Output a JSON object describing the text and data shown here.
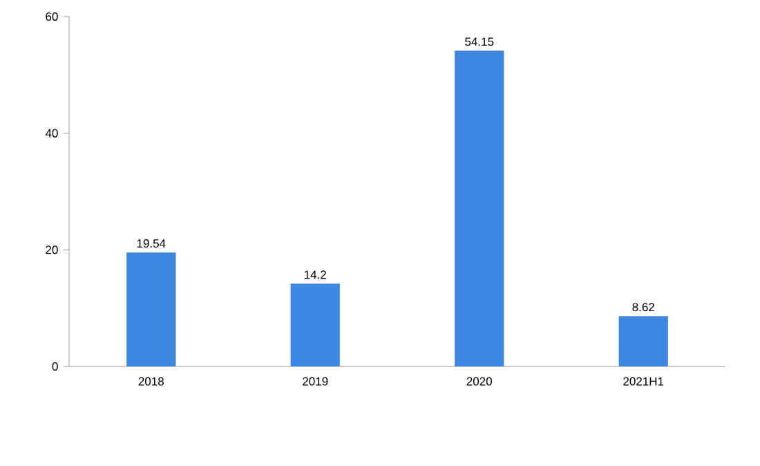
{
  "chart_data": {
    "type": "bar",
    "categories": [
      "2018",
      "2019",
      "2020",
      "2021H1"
    ],
    "values": [
      19.54,
      14.2,
      54.15,
      8.62
    ],
    "color": "#3d87e0",
    "ylim": [
      0,
      60
    ],
    "yticks": [
      0,
      20,
      40,
      60
    ],
    "data_labels": true
  }
}
